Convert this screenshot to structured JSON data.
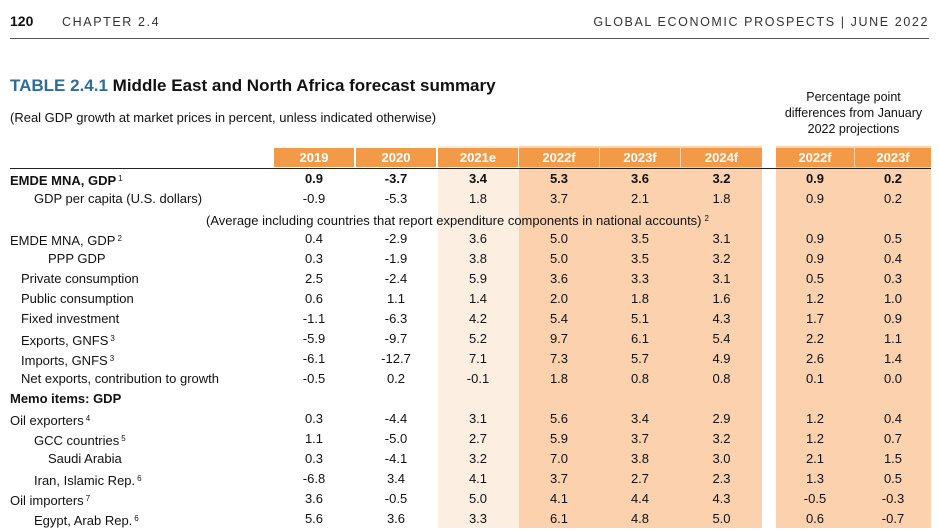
{
  "header": {
    "page_number": "120",
    "chapter": "CHAPTER 2.4",
    "publication": "GLOBAL ECONOMIC PROSPECTS | JUNE 2022"
  },
  "table": {
    "id": "TABLE 2.4.1",
    "title": "Middle East and North Africa forecast summary",
    "subtitle": "(Real GDP growth at market prices in percent, unless indicated otherwise)",
    "diff_heading": [
      "Percentage point",
      "differences from January",
      "2022 projections"
    ],
    "columns": [
      "2019",
      "2020",
      "2021e",
      "2022f",
      "2023f",
      "2024f"
    ],
    "diff_columns": [
      "2022f",
      "2023f"
    ],
    "rows": [
      {
        "label": "EMDE MNA, GDP",
        "sup": "1",
        "indent": 0,
        "bold": true,
        "values": [
          "0.9",
          "-3.7",
          "3.4",
          "5.3",
          "3.6",
          "3.2"
        ],
        "diff": [
          "0.9",
          "0.2"
        ]
      },
      {
        "label": "GDP per capita (U.S. dollars)",
        "sup": "",
        "indent": 1,
        "bold": false,
        "values": [
          "-0.9",
          "-5.3",
          "1.8",
          "3.7",
          "2.1",
          "1.8"
        ],
        "diff": [
          "0.9",
          "0.2"
        ]
      },
      {
        "note": "(Average including countries that report expenditure components in national accounts)",
        "sup": "2"
      },
      {
        "label": "EMDE MNA, GDP",
        "sup": "2",
        "indent": 0,
        "bold": false,
        "values": [
          "0.4",
          "-2.9",
          "3.6",
          "5.0",
          "3.5",
          "3.1"
        ],
        "diff": [
          "0.9",
          "0.5"
        ]
      },
      {
        "label": "PPP GDP",
        "sup": "",
        "indent": 3,
        "bold": false,
        "values": [
          "0.3",
          "-1.9",
          "3.8",
          "5.0",
          "3.5",
          "3.2"
        ],
        "diff": [
          "0.9",
          "0.4"
        ]
      },
      {
        "label": "Private consumption",
        "sup": "",
        "indent": 2,
        "bold": false,
        "values": [
          "2.5",
          "-2.4",
          "5.9",
          "3.6",
          "3.3",
          "3.1"
        ],
        "diff": [
          "0.5",
          "0.3"
        ]
      },
      {
        "label": "Public consumption",
        "sup": "",
        "indent": 2,
        "bold": false,
        "values": [
          "0.6",
          "1.1",
          "1.4",
          "2.0",
          "1.8",
          "1.6"
        ],
        "diff": [
          "1.2",
          "1.0"
        ]
      },
      {
        "label": "Fixed investment",
        "sup": "",
        "indent": 2,
        "bold": false,
        "values": [
          "-1.1",
          "-6.3",
          "4.2",
          "5.4",
          "5.1",
          "4.3"
        ],
        "diff": [
          "1.7",
          "0.9"
        ]
      },
      {
        "label": "Exports, GNFS",
        "sup": "3",
        "indent": 2,
        "bold": false,
        "values": [
          "-5.9",
          "-9.7",
          "5.2",
          "9.7",
          "6.1",
          "5.4"
        ],
        "diff": [
          "2.2",
          "1.1"
        ]
      },
      {
        "label": "Imports, GNFS",
        "sup": "3",
        "indent": 2,
        "bold": false,
        "values": [
          "-6.1",
          "-12.7",
          "7.1",
          "7.3",
          "5.7",
          "4.9"
        ],
        "diff": [
          "2.6",
          "1.4"
        ]
      },
      {
        "label": "Net exports, contribution to growth",
        "sup": "",
        "indent": 2,
        "bold": false,
        "values": [
          "-0.5",
          "0.2",
          "-0.1",
          "1.8",
          "0.8",
          "0.8"
        ],
        "diff": [
          "0.1",
          "0.0"
        ]
      },
      {
        "label": "Memo items: GDP",
        "sup": "",
        "indent": 0,
        "bold": true,
        "values": [
          "",
          "",
          "",
          "",
          "",
          ""
        ],
        "diff": [
          "",
          ""
        ]
      },
      {
        "label": "Oil exporters",
        "sup": "4",
        "indent": 0,
        "bold": false,
        "values": [
          "0.3",
          "-4.4",
          "3.1",
          "5.6",
          "3.4",
          "2.9"
        ],
        "diff": [
          "1.2",
          "0.4"
        ]
      },
      {
        "label": "GCC countries",
        "sup": "5",
        "indent": 1,
        "bold": false,
        "values": [
          "1.1",
          "-5.0",
          "2.7",
          "5.9",
          "3.7",
          "3.2"
        ],
        "diff": [
          "1.2",
          "0.7"
        ]
      },
      {
        "label": "Saudi Arabia",
        "sup": "",
        "indent": 3,
        "bold": false,
        "values": [
          "0.3",
          "-4.1",
          "3.2",
          "7.0",
          "3.8",
          "3.0"
        ],
        "diff": [
          "2.1",
          "1.5"
        ]
      },
      {
        "label": "Iran, Islamic Rep.",
        "sup": "6",
        "indent": 1,
        "bold": false,
        "values": [
          "-6.8",
          "3.4",
          "4.1",
          "3.7",
          "2.7",
          "2.3"
        ],
        "diff": [
          "1.3",
          "0.5"
        ]
      },
      {
        "label": "Oil importers",
        "sup": "7",
        "indent": 0,
        "bold": false,
        "values": [
          "3.6",
          "-0.5",
          "5.0",
          "4.1",
          "4.4",
          "4.3"
        ],
        "diff": [
          "-0.5",
          "-0.3"
        ]
      },
      {
        "label": "Egypt, Arab Rep.",
        "sup": "6",
        "indent": 1,
        "bold": false,
        "values": [
          "5.6",
          "3.6",
          "3.3",
          "6.1",
          "4.8",
          "5.0"
        ],
        "diff": [
          "0.6",
          "-0.7"
        ]
      }
    ]
  }
}
